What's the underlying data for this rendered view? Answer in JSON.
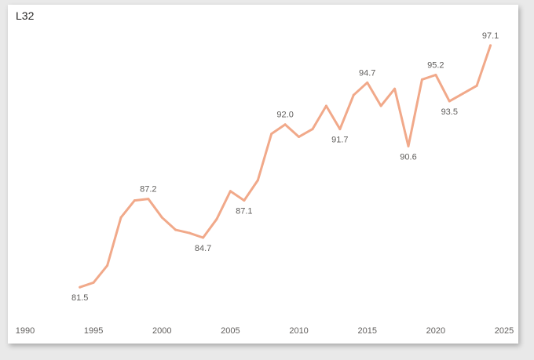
{
  "chart_data": {
    "type": "line",
    "title": "L32",
    "xlabel": "",
    "ylabel": "",
    "xlim": [
      1990,
      2025
    ],
    "xticks": [
      1990,
      1995,
      2000,
      2005,
      2010,
      2015,
      2020,
      2025
    ],
    "ylim": [
      80.5,
      97.5
    ],
    "grid": false,
    "line_color": "#f1a98a",
    "label_color": "#605e5c",
    "series": [
      {
        "x": [
          1994,
          1995,
          1996,
          1997,
          1998,
          1999,
          2000,
          2001,
          2002,
          2003,
          2004,
          2005,
          2006,
          2007,
          2008,
          2009,
          2010,
          2011,
          2012,
          2013,
          2014,
          2015,
          2016,
          2017,
          2018,
          2019,
          2020,
          2021,
          2022,
          2023,
          2024
        ],
        "values": [
          81.5,
          81.8,
          82.9,
          86.0,
          87.1,
          87.2,
          86.0,
          85.2,
          85.0,
          84.7,
          85.9,
          87.7,
          87.1,
          88.4,
          91.4,
          92.0,
          91.2,
          91.7,
          93.2,
          91.7,
          93.9,
          94.7,
          93.2,
          94.3,
          90.6,
          94.9,
          95.2,
          93.5,
          94.0,
          94.5,
          97.1
        ]
      }
    ],
    "data_labels": [
      {
        "x": 1994,
        "text": "81.5",
        "pos": "below"
      },
      {
        "x": 1999,
        "text": "87.2",
        "pos": "above"
      },
      {
        "x": 2003,
        "text": "84.7",
        "pos": "below"
      },
      {
        "x": 2006,
        "text": "87.1",
        "pos": "below"
      },
      {
        "x": 2009,
        "text": "92.0",
        "pos": "above"
      },
      {
        "x": 2013,
        "text": "91.7",
        "pos": "below"
      },
      {
        "x": 2015,
        "text": "94.7",
        "pos": "above"
      },
      {
        "x": 2018,
        "text": "90.6",
        "pos": "below"
      },
      {
        "x": 2020,
        "text": "95.2",
        "pos": "above"
      },
      {
        "x": 2021,
        "text": "93.5",
        "pos": "below"
      },
      {
        "x": 2024,
        "text": "97.1",
        "pos": "above"
      }
    ]
  }
}
